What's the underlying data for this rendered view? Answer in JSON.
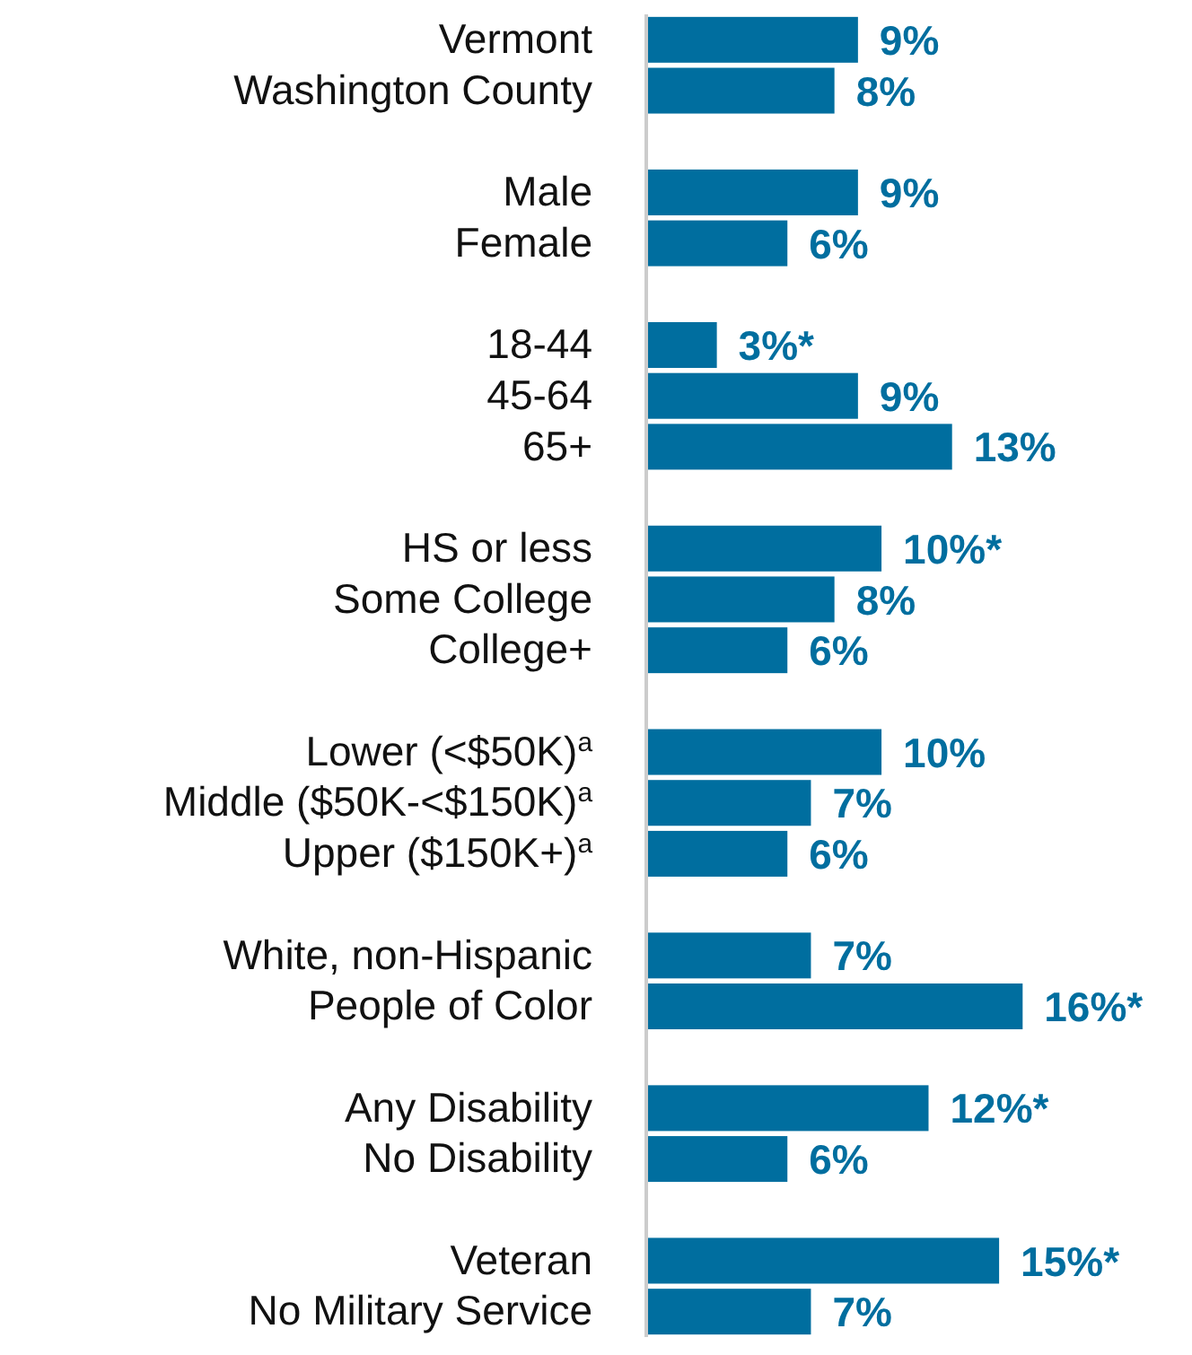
{
  "chart_data": {
    "type": "bar",
    "orientation": "horizontal",
    "tick_labels": "y",
    "color": "#006e9f",
    "categories": [
      "Vermont",
      "Washington County",
      null,
      "Male",
      "Female",
      null,
      "18-44",
      "45-64",
      "65+",
      null,
      "HS or less",
      "Some College",
      "College+",
      null,
      "Lower (<$50K)$^{a}$",
      "Middle ($50K-<$150K)$^{a}$",
      "Upper ($150K+)$^{a}$",
      null,
      "White, non-Hispanic",
      "People of Color",
      null,
      "Any Disability",
      "No Disability",
      null,
      "Veteran",
      "No Military Service"
    ],
    "values": [
      9,
      8,
      null,
      9,
      6,
      null,
      3,
      9,
      13,
      null,
      10,
      8,
      6,
      null,
      10,
      7,
      6,
      null,
      7,
      16,
      null,
      12,
      6,
      null,
      15,
      7
    ],
    "value_labels": [
      "9%",
      "8%",
      null,
      "9%",
      "6%",
      null,
      "3%*",
      "9%",
      "13%",
      null,
      "10%*",
      "8%",
      "6%",
      null,
      "10%",
      "7%",
      "6%",
      null,
      "7%",
      "16%*",
      null,
      "12%*",
      "6%",
      null,
      "15%*",
      "7%"
    ]
  }
}
